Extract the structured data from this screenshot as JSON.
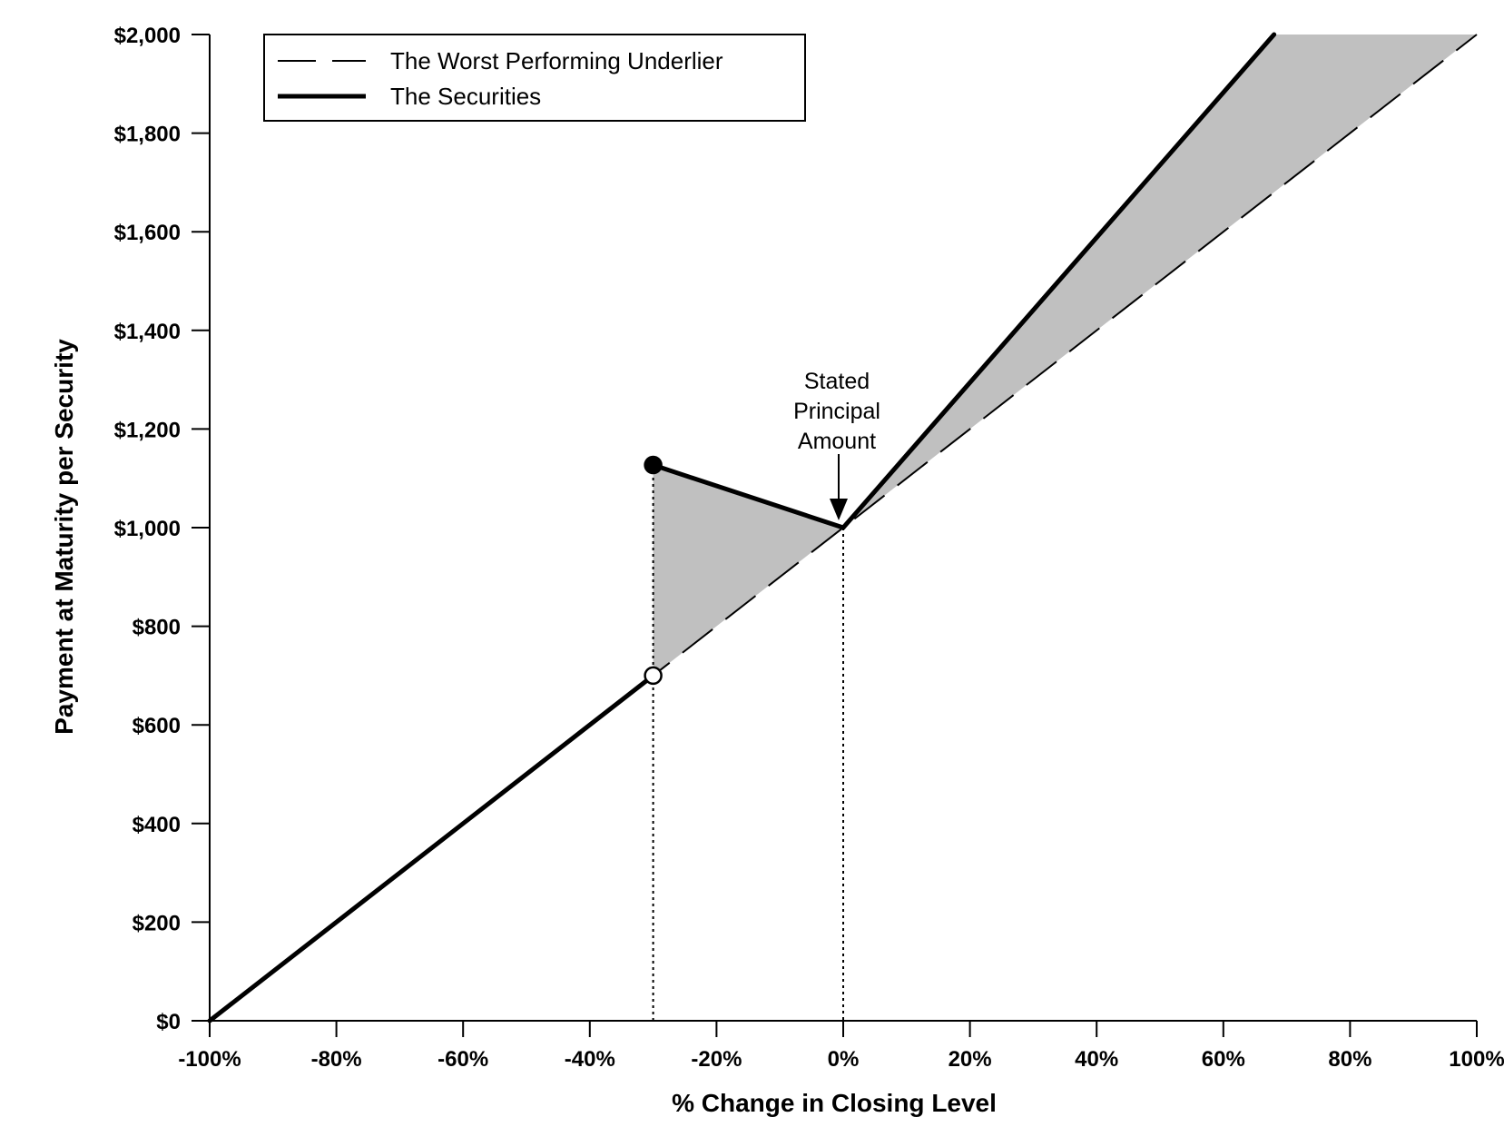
{
  "chart_data": {
    "type": "line",
    "xlabel": "% Change in Closing Level",
    "ylabel": "Payment at Maturity per Security",
    "xlim": [
      -100,
      100
    ],
    "ylim": [
      0,
      2000
    ],
    "x_ticks": [
      -100,
      -80,
      -60,
      -40,
      -20,
      0,
      20,
      40,
      60,
      80,
      100
    ],
    "x_tick_labels": [
      "-100%",
      "-80%",
      "-60%",
      "-40%",
      "-20%",
      "0%",
      "20%",
      "40%",
      "60%",
      "80%",
      "100%"
    ],
    "y_ticks": [
      0,
      200,
      400,
      600,
      800,
      1000,
      1200,
      1400,
      1600,
      1800,
      2000
    ],
    "y_tick_labels": [
      "$0",
      "$200",
      "$400",
      "$600",
      "$800",
      "$1,000",
      "$1,200",
      "$1,400",
      "$1,600",
      "$1,800",
      "$2,000"
    ],
    "grid": false,
    "legend_position": "top-left",
    "legend": [
      {
        "label": "The Worst Performing Underlier",
        "style": "dashed"
      },
      {
        "label": "The Securities",
        "style": "solid"
      }
    ],
    "series": [
      {
        "name": "The Worst Performing Underlier",
        "style": "dashed",
        "x": [
          -100,
          100
        ],
        "y": [
          0,
          2000
        ]
      },
      {
        "name": "The Securities",
        "style": "solid",
        "segments": [
          {
            "x": [
              -100,
              -30
            ],
            "y": [
              0,
              700
            ]
          },
          {
            "x": [
              -30,
              0
            ],
            "y": [
              1127,
              1000
            ]
          },
          {
            "x": [
              0,
              68
            ],
            "y": [
              1000,
              2000
            ]
          }
        ]
      }
    ],
    "markers": [
      {
        "x": -30,
        "y": 1127,
        "fill": "filled"
      },
      {
        "x": -30,
        "y": 700,
        "fill": "open"
      }
    ],
    "reference_lines": [
      {
        "x": -30,
        "style": "dotted"
      },
      {
        "x": 0,
        "style": "dotted"
      }
    ],
    "shaded_regions": [
      {
        "between": "The Securities and The Worst Performing Underlier",
        "x_range": [
          -30,
          0
        ]
      },
      {
        "between": "The Securities and The Worst Performing Underlier",
        "x_range": [
          0,
          100
        ]
      }
    ],
    "annotation": {
      "lines": [
        "Stated",
        "Principal",
        "Amount"
      ],
      "x": 0,
      "y": 1000
    },
    "colors": {
      "line": "#000000",
      "shade": "#c0c0c0",
      "background": "#ffffff"
    }
  }
}
